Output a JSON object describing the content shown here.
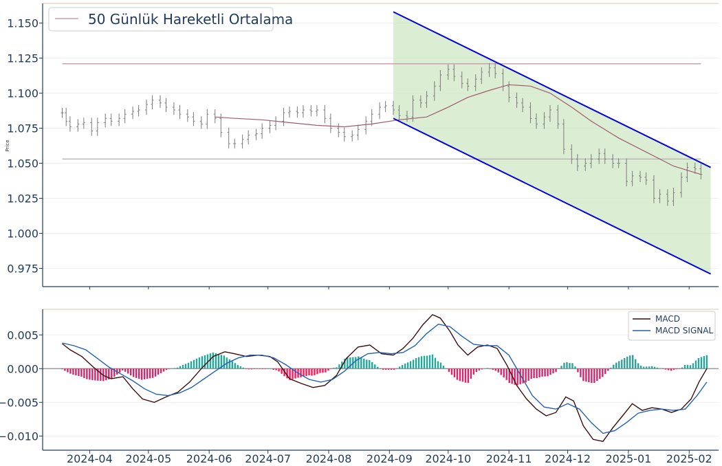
{
  "chart_data": [
    {
      "type": "line",
      "subtype": "ohlc-price-with-channel",
      "title": "",
      "xlabel": "",
      "ylabel": "Price",
      "ylim": [
        0.962,
        1.164
      ],
      "grid": "horizontal",
      "legend": {
        "position": "top-left",
        "entries": [
          "50 Günlük Hareketli Ortalama"
        ]
      },
      "y_ticks": [
        "0.975",
        "1.000",
        "1.025",
        "1.050",
        "1.075",
        "1.100",
        "1.125",
        "1.150"
      ],
      "x_ticks": [
        "2024-04",
        "2024-05",
        "2024-06",
        "2024-07",
        "2024-08",
        "2024-09",
        "2024-10",
        "2024-11",
        "2024-12",
        "2025-01",
        "2025-02"
      ],
      "price_close": [
        [
          "2024-03-18",
          1.086
        ],
        [
          "2024-03-20",
          1.08
        ],
        [
          "2024-03-22",
          1.076
        ],
        [
          "2024-03-26",
          1.078
        ],
        [
          "2024-03-29",
          1.079
        ],
        [
          "2024-04-02",
          1.073
        ],
        [
          "2024-04-05",
          1.079
        ],
        [
          "2024-04-09",
          1.082
        ],
        [
          "2024-04-12",
          1.08
        ],
        [
          "2024-04-16",
          1.082
        ],
        [
          "2024-04-19",
          1.085
        ],
        [
          "2024-04-23",
          1.087
        ],
        [
          "2024-04-26",
          1.088
        ],
        [
          "2024-04-30",
          1.092
        ],
        [
          "2024-05-03",
          1.095
        ],
        [
          "2024-05-07",
          1.093
        ],
        [
          "2024-05-10",
          1.09
        ],
        [
          "2024-05-14",
          1.088
        ],
        [
          "2024-05-17",
          1.085
        ],
        [
          "2024-05-21",
          1.083
        ],
        [
          "2024-05-24",
          1.08
        ],
        [
          "2024-05-28",
          1.078
        ],
        [
          "2024-05-31",
          1.085
        ],
        [
          "2024-06-04",
          1.082
        ],
        [
          "2024-06-07",
          1.072
        ],
        [
          "2024-06-11",
          1.064
        ],
        [
          "2024-06-14",
          1.064
        ],
        [
          "2024-06-18",
          1.067
        ],
        [
          "2024-06-21",
          1.07
        ],
        [
          "2024-06-25",
          1.071
        ],
        [
          "2024-06-28",
          1.075
        ],
        [
          "2024-07-02",
          1.077
        ],
        [
          "2024-07-05",
          1.08
        ],
        [
          "2024-07-09",
          1.086
        ],
        [
          "2024-07-12",
          1.087
        ],
        [
          "2024-07-16",
          1.086
        ],
        [
          "2024-07-19",
          1.088
        ],
        [
          "2024-07-23",
          1.087
        ],
        [
          "2024-07-26",
          1.088
        ],
        [
          "2024-07-30",
          1.082
        ],
        [
          "2024-08-02",
          1.075
        ],
        [
          "2024-08-06",
          1.072
        ],
        [
          "2024-08-09",
          1.069
        ],
        [
          "2024-08-13",
          1.07
        ],
        [
          "2024-08-16",
          1.074
        ],
        [
          "2024-08-20",
          1.08
        ],
        [
          "2024-08-23",
          1.085
        ],
        [
          "2024-08-27",
          1.09
        ],
        [
          "2024-08-30",
          1.091
        ],
        [
          "2024-09-03",
          1.088
        ],
        [
          "2024-09-06",
          1.084
        ],
        [
          "2024-09-10",
          1.083
        ],
        [
          "2024-09-13",
          1.095
        ],
        [
          "2024-09-17",
          1.093
        ],
        [
          "2024-09-20",
          1.098
        ],
        [
          "2024-09-24",
          1.105
        ],
        [
          "2024-09-27",
          1.113
        ],
        [
          "2024-10-01",
          1.117
        ],
        [
          "2024-10-04",
          1.112
        ],
        [
          "2024-10-08",
          1.107
        ],
        [
          "2024-10-11",
          1.105
        ],
        [
          "2024-10-15",
          1.11
        ],
        [
          "2024-10-18",
          1.115
        ],
        [
          "2024-10-22",
          1.118
        ],
        [
          "2024-10-25",
          1.114
        ],
        [
          "2024-10-29",
          1.105
        ],
        [
          "2024-11-01",
          1.097
        ],
        [
          "2024-11-05",
          1.093
        ],
        [
          "2024-11-08",
          1.09
        ],
        [
          "2024-11-12",
          1.082
        ],
        [
          "2024-11-15",
          1.078
        ],
        [
          "2024-11-19",
          1.083
        ],
        [
          "2024-11-22",
          1.088
        ],
        [
          "2024-11-26",
          1.078
        ],
        [
          "2024-11-29",
          1.06
        ],
        [
          "2024-12-03",
          1.053
        ],
        [
          "2024-12-06",
          1.048
        ],
        [
          "2024-12-10",
          1.05
        ],
        [
          "2024-12-13",
          1.053
        ],
        [
          "2024-12-17",
          1.057
        ],
        [
          "2024-12-20",
          1.053
        ],
        [
          "2024-12-24",
          1.05
        ],
        [
          "2024-12-27",
          1.05
        ],
        [
          "2024-12-31",
          1.037
        ],
        [
          "2025-01-03",
          1.041
        ],
        [
          "2025-01-07",
          1.04
        ],
        [
          "2025-01-10",
          1.038
        ],
        [
          "2025-01-14",
          1.025
        ],
        [
          "2025-01-17",
          1.028
        ],
        [
          "2025-01-21",
          1.023
        ],
        [
          "2025-01-24",
          1.029
        ],
        [
          "2025-01-28",
          1.04
        ],
        [
          "2025-01-31",
          1.047
        ],
        [
          "2025-02-04",
          1.046
        ],
        [
          "2025-02-07",
          1.042
        ]
      ],
      "moving_average_50": [
        [
          "2024-06-04",
          1.083
        ],
        [
          "2024-06-14",
          1.082
        ],
        [
          "2024-06-28",
          1.081
        ],
        [
          "2024-07-12",
          1.079
        ],
        [
          "2024-07-26",
          1.077
        ],
        [
          "2024-08-09",
          1.076
        ],
        [
          "2024-08-23",
          1.078
        ],
        [
          "2024-09-06",
          1.081
        ],
        [
          "2024-09-20",
          1.083
        ],
        [
          "2024-10-01",
          1.09
        ],
        [
          "2024-10-11",
          1.097
        ],
        [
          "2024-10-22",
          1.102
        ],
        [
          "2024-11-01",
          1.106
        ],
        [
          "2024-11-12",
          1.105
        ],
        [
          "2024-11-22",
          1.1
        ],
        [
          "2024-12-03",
          1.09
        ],
        [
          "2024-12-13",
          1.08
        ],
        [
          "2024-12-27",
          1.068
        ],
        [
          "2025-01-10",
          1.058
        ],
        [
          "2025-01-24",
          1.048
        ],
        [
          "2025-02-07",
          1.042
        ]
      ],
      "horizontal_levels": [
        1.121,
        1.053
      ],
      "channel": {
        "upper": [
          [
            "2024-09-03",
            1.158
          ],
          [
            "2025-02-12",
            1.047
          ]
        ],
        "lower": [
          [
            "2024-09-03",
            1.082
          ],
          [
            "2025-02-12",
            0.971
          ]
        ]
      },
      "colors": {
        "price": "#7a7a7a",
        "moving_average": "#a05a6e",
        "levels": "#c9a0ad",
        "level_low": "#b8b8b8",
        "channel": "#0000dd",
        "channel_fill": "#cfe8c6"
      }
    },
    {
      "type": "bar",
      "subtype": "macd-indicator",
      "title": "",
      "xlabel": "",
      "ylabel": "",
      "ylim": [
        -0.0121,
        0.0088
      ],
      "y_ticks": [
        "−0.010",
        "−0.005",
        "0.000",
        "0.005"
      ],
      "legend": {
        "position": "top-right",
        "entries": [
          "MACD",
          "MACD SIGNAL"
        ]
      },
      "series": [
        {
          "name": "MACD",
          "color": "#3a0a0a",
          "values": [
            [
              "2024-03-18",
              0.0037
            ],
            [
              "2024-03-22",
              0.0028
            ],
            [
              "2024-03-28",
              0.0018
            ],
            [
              "2024-04-03",
              0.0002
            ],
            [
              "2024-04-08",
              -0.001
            ],
            [
              "2024-04-12",
              -0.0015
            ],
            [
              "2024-04-18",
              -0.0012
            ],
            [
              "2024-04-23",
              -0.003
            ],
            [
              "2024-04-28",
              -0.0045
            ],
            [
              "2024-05-04",
              -0.005
            ],
            [
              "2024-05-10",
              -0.0042
            ],
            [
              "2024-05-16",
              -0.0035
            ],
            [
              "2024-05-22",
              -0.002
            ],
            [
              "2024-05-28",
              0.0
            ],
            [
              "2024-06-03",
              0.0018
            ],
            [
              "2024-06-09",
              0.0025
            ],
            [
              "2024-06-14",
              0.0022
            ],
            [
              "2024-06-20",
              0.0018
            ],
            [
              "2024-06-26",
              0.002
            ],
            [
              "2024-07-02",
              0.0018
            ],
            [
              "2024-07-06",
              0.001
            ],
            [
              "2024-07-12",
              -0.0015
            ],
            [
              "2024-07-18",
              -0.0022
            ],
            [
              "2024-07-24",
              -0.0028
            ],
            [
              "2024-07-30",
              -0.0025
            ],
            [
              "2024-08-05",
              -0.001
            ],
            [
              "2024-08-10",
              0.0015
            ],
            [
              "2024-08-16",
              0.0032
            ],
            [
              "2024-08-22",
              0.0035
            ],
            [
              "2024-08-28",
              0.0022
            ],
            [
              "2024-09-03",
              0.002
            ],
            [
              "2024-09-08",
              0.003
            ],
            [
              "2024-09-13",
              0.0045
            ],
            [
              "2024-09-18",
              0.0065
            ],
            [
              "2024-09-23",
              0.008
            ],
            [
              "2024-09-27",
              0.0075
            ],
            [
              "2024-10-02",
              0.0055
            ],
            [
              "2024-10-06",
              0.0035
            ],
            [
              "2024-10-11",
              0.002
            ],
            [
              "2024-10-16",
              0.0032
            ],
            [
              "2024-10-21",
              0.0035
            ],
            [
              "2024-10-26",
              0.003
            ],
            [
              "2024-10-31",
              0.0005
            ],
            [
              "2024-11-05",
              -0.0025
            ],
            [
              "2024-11-10",
              -0.0045
            ],
            [
              "2024-11-15",
              -0.006
            ],
            [
              "2024-11-20",
              -0.007
            ],
            [
              "2024-11-25",
              -0.0065
            ],
            [
              "2024-11-30",
              -0.0042
            ],
            [
              "2024-12-04",
              -0.0048
            ],
            [
              "2024-12-09",
              -0.0085
            ],
            [
              "2024-12-14",
              -0.0105
            ],
            [
              "2024-12-19",
              -0.0108
            ],
            [
              "2024-12-24",
              -0.0088
            ],
            [
              "2024-12-29",
              -0.007
            ],
            [
              "2025-01-03",
              -0.0052
            ],
            [
              "2025-01-08",
              -0.0062
            ],
            [
              "2025-01-13",
              -0.0058
            ],
            [
              "2025-01-18",
              -0.006
            ],
            [
              "2025-01-23",
              -0.0065
            ],
            [
              "2025-01-28",
              -0.006
            ],
            [
              "2025-02-02",
              -0.0045
            ],
            [
              "2025-02-06",
              -0.002
            ],
            [
              "2025-02-10",
              0.0
            ]
          ]
        },
        {
          "name": "MACD SIGNAL",
          "color": "#1f5fb0",
          "values": [
            [
              "2024-03-18",
              0.0038
            ],
            [
              "2024-03-24",
              0.0034
            ],
            [
              "2024-03-30",
              0.0028
            ],
            [
              "2024-04-05",
              0.0015
            ],
            [
              "2024-04-11",
              0.0002
            ],
            [
              "2024-04-17",
              -0.0008
            ],
            [
              "2024-04-23",
              -0.0018
            ],
            [
              "2024-04-29",
              -0.003
            ],
            [
              "2024-05-05",
              -0.0038
            ],
            [
              "2024-05-11",
              -0.004
            ],
            [
              "2024-05-17",
              -0.0036
            ],
            [
              "2024-05-23",
              -0.0028
            ],
            [
              "2024-05-29",
              -0.0016
            ],
            [
              "2024-06-04",
              -0.0004
            ],
            [
              "2024-06-10",
              0.0008
            ],
            [
              "2024-06-16",
              0.0016
            ],
            [
              "2024-06-22",
              0.002
            ],
            [
              "2024-06-28",
              0.002
            ],
            [
              "2024-07-04",
              0.0016
            ],
            [
              "2024-07-10",
              0.0006
            ],
            [
              "2024-07-16",
              -0.0006
            ],
            [
              "2024-07-22",
              -0.0016
            ],
            [
              "2024-07-28",
              -0.002
            ],
            [
              "2024-08-03",
              -0.0016
            ],
            [
              "2024-08-09",
              -0.0004
            ],
            [
              "2024-08-15",
              0.0012
            ],
            [
              "2024-08-21",
              0.0022
            ],
            [
              "2024-08-27",
              0.0024
            ],
            [
              "2024-09-02",
              0.0022
            ],
            [
              "2024-09-08",
              0.0024
            ],
            [
              "2024-09-14",
              0.0034
            ],
            [
              "2024-09-20",
              0.0052
            ],
            [
              "2024-09-26",
              0.0066
            ],
            [
              "2024-10-02",
              0.0062
            ],
            [
              "2024-10-08",
              0.0048
            ],
            [
              "2024-10-14",
              0.0036
            ],
            [
              "2024-10-20",
              0.0034
            ],
            [
              "2024-10-26",
              0.0034
            ],
            [
              "2024-11-01",
              0.002
            ],
            [
              "2024-11-07",
              -0.001
            ],
            [
              "2024-11-13",
              -0.004
            ],
            [
              "2024-11-19",
              -0.0057
            ],
            [
              "2024-11-25",
              -0.006
            ],
            [
              "2024-12-01",
              -0.0052
            ],
            [
              "2024-12-07",
              -0.006
            ],
            [
              "2024-12-13",
              -0.008
            ],
            [
              "2024-12-19",
              -0.0096
            ],
            [
              "2024-12-25",
              -0.0092
            ],
            [
              "2024-12-31",
              -0.008
            ],
            [
              "2025-01-06",
              -0.0066
            ],
            [
              "2025-01-12",
              -0.0062
            ],
            [
              "2025-01-18",
              -0.006
            ],
            [
              "2025-01-24",
              -0.0062
            ],
            [
              "2025-01-30",
              -0.006
            ],
            [
              "2025-02-05",
              -0.004
            ],
            [
              "2025-02-10",
              -0.002
            ]
          ]
        }
      ],
      "histogram_colors": {
        "positive": "#26a69a",
        "negative": "#e91e63"
      }
    }
  ]
}
